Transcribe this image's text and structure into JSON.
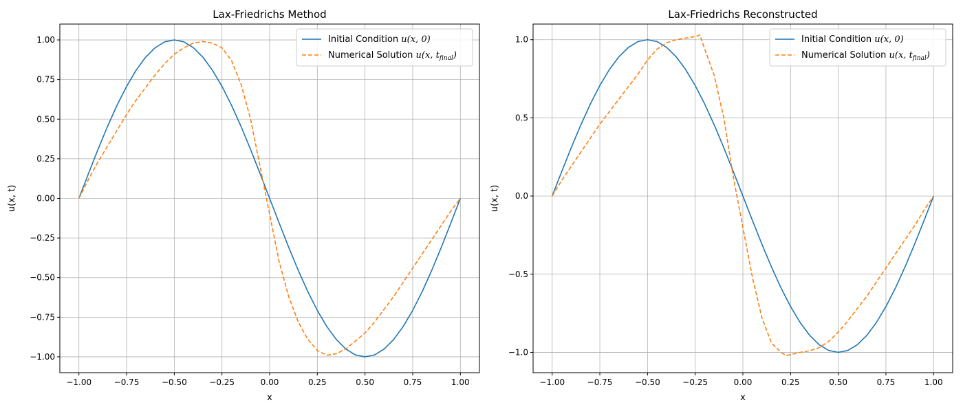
{
  "figure": {
    "panels": [
      {
        "title": "Lax-Friedrichs Method"
      },
      {
        "title": "Lax-Friedrichs Reconstructed"
      }
    ]
  },
  "chart_data": [
    {
      "type": "line",
      "title": "Lax-Friedrichs Method",
      "xlabel": "x",
      "ylabel": "u(x, t)",
      "xlim": [
        -1.1,
        1.1
      ],
      "ylim": [
        -1.1,
        1.1
      ],
      "xticks": [
        -1.0,
        -0.75,
        -0.5,
        -0.25,
        0.0,
        0.25,
        0.5,
        0.75,
        1.0
      ],
      "xtick_labels": [
        "−1.00",
        "−0.75",
        "−0.50",
        "−0.25",
        "0.00",
        "0.25",
        "0.50",
        "0.75",
        "1.00"
      ],
      "yticks": [
        -1.0,
        -0.75,
        -0.5,
        -0.25,
        0.0,
        0.25,
        0.5,
        0.75,
        1.0
      ],
      "ytick_labels": [
        "−1.00",
        "−0.75",
        "−0.50",
        "−0.25",
        "0.00",
        "0.25",
        "0.50",
        "0.75",
        "1.00"
      ],
      "grid": true,
      "legend_position": "top-right",
      "series": [
        {
          "name": "Initial Condition u(x, 0)",
          "legend_prefix": "Initial Condition ",
          "legend_math": "u(x, 0)",
          "color": "#1f77b4",
          "style": "solid",
          "x": [
            -1.0,
            -0.95,
            -0.9,
            -0.85,
            -0.8,
            -0.75,
            -0.7,
            -0.65,
            -0.6,
            -0.55,
            -0.5,
            -0.45,
            -0.4,
            -0.35,
            -0.3,
            -0.25,
            -0.2,
            -0.15,
            -0.1,
            -0.05,
            0.0,
            0.05,
            0.1,
            0.15,
            0.2,
            0.25,
            0.3,
            0.35,
            0.4,
            0.45,
            0.5,
            0.55,
            0.6,
            0.65,
            0.7,
            0.75,
            0.8,
            0.85,
            0.9,
            0.95,
            1.0
          ],
          "y": [
            0.0,
            0.156,
            0.309,
            0.454,
            0.588,
            0.707,
            0.809,
            0.891,
            0.951,
            0.988,
            1.0,
            0.988,
            0.951,
            0.891,
            0.809,
            0.707,
            0.588,
            0.454,
            0.309,
            0.156,
            0.0,
            -0.156,
            -0.309,
            -0.454,
            -0.588,
            -0.707,
            -0.809,
            -0.891,
            -0.951,
            -0.988,
            -1.0,
            -0.988,
            -0.951,
            -0.891,
            -0.809,
            -0.707,
            -0.588,
            -0.454,
            -0.309,
            -0.156,
            0.0
          ]
        },
        {
          "name": "Numerical Solution u(x, t_final)",
          "legend_prefix": "Numerical Solution ",
          "legend_math": "u(x, t",
          "legend_sub": "final",
          "legend_close": ")",
          "color": "#ff7f0e",
          "style": "dashed",
          "x": [
            -1.0,
            -0.95,
            -0.9,
            -0.85,
            -0.8,
            -0.75,
            -0.7,
            -0.65,
            -0.6,
            -0.55,
            -0.5,
            -0.45,
            -0.4,
            -0.35,
            -0.3,
            -0.25,
            -0.2,
            -0.15,
            -0.1,
            -0.05,
            0.0,
            0.05,
            0.1,
            0.15,
            0.2,
            0.25,
            0.3,
            0.35,
            0.4,
            0.45,
            0.5,
            0.55,
            0.6,
            0.65,
            0.7,
            0.75,
            0.8,
            0.85,
            0.9,
            0.95,
            1.0
          ],
          "y": [
            0.0,
            0.12,
            0.23,
            0.33,
            0.43,
            0.53,
            0.62,
            0.7,
            0.78,
            0.85,
            0.91,
            0.95,
            0.98,
            0.99,
            0.98,
            0.95,
            0.87,
            0.72,
            0.5,
            0.2,
            -0.1,
            -0.4,
            -0.62,
            -0.78,
            -0.89,
            -0.96,
            -0.99,
            -0.98,
            -0.95,
            -0.9,
            -0.85,
            -0.78,
            -0.7,
            -0.62,
            -0.53,
            -0.44,
            -0.35,
            -0.26,
            -0.17,
            -0.08,
            0.0
          ]
        }
      ]
    },
    {
      "type": "line",
      "title": "Lax-Friedrichs Reconstructed",
      "xlabel": "x",
      "ylabel": "u(x, t)",
      "xlim": [
        -1.1,
        1.1
      ],
      "ylim": [
        -1.13,
        1.1
      ],
      "xticks": [
        -1.0,
        -0.75,
        -0.5,
        -0.25,
        0.0,
        0.25,
        0.5,
        0.75,
        1.0
      ],
      "xtick_labels": [
        "−1.00",
        "−0.75",
        "−0.50",
        "−0.25",
        "0.00",
        "0.25",
        "0.50",
        "0.75",
        "1.00"
      ],
      "yticks": [
        -1.0,
        -0.5,
        0.0,
        0.5,
        1.0
      ],
      "ytick_labels": [
        "−1.0",
        "−0.5",
        "0.0",
        "0.5",
        "1.0"
      ],
      "grid": true,
      "legend_position": "top-right",
      "series": [
        {
          "name": "Initial Condition u(x, 0)",
          "legend_prefix": "Initial Condition ",
          "legend_math": "u(x, 0)",
          "color": "#1f77b4",
          "style": "solid",
          "x": [
            -1.0,
            -0.95,
            -0.9,
            -0.85,
            -0.8,
            -0.75,
            -0.7,
            -0.65,
            -0.6,
            -0.55,
            -0.5,
            -0.45,
            -0.4,
            -0.35,
            -0.3,
            -0.25,
            -0.2,
            -0.15,
            -0.1,
            -0.05,
            0.0,
            0.05,
            0.1,
            0.15,
            0.2,
            0.25,
            0.3,
            0.35,
            0.4,
            0.45,
            0.5,
            0.55,
            0.6,
            0.65,
            0.7,
            0.75,
            0.8,
            0.85,
            0.9,
            0.95,
            1.0
          ],
          "y": [
            0.0,
            0.156,
            0.309,
            0.454,
            0.588,
            0.707,
            0.809,
            0.891,
            0.951,
            0.988,
            1.0,
            0.988,
            0.951,
            0.891,
            0.809,
            0.707,
            0.588,
            0.454,
            0.309,
            0.156,
            0.0,
            -0.156,
            -0.309,
            -0.454,
            -0.588,
            -0.707,
            -0.809,
            -0.891,
            -0.951,
            -0.988,
            -1.0,
            -0.988,
            -0.951,
            -0.891,
            -0.809,
            -0.707,
            -0.588,
            -0.454,
            -0.309,
            -0.156,
            0.0
          ]
        },
        {
          "name": "Numerical Solution u(x, t_final)",
          "legend_prefix": "Numerical Solution ",
          "legend_math": "u(x, t",
          "legend_sub": "final",
          "legend_close": ")",
          "color": "#ff7f0e",
          "style": "dashed",
          "x": [
            -1.0,
            -0.95,
            -0.9,
            -0.85,
            -0.8,
            -0.75,
            -0.7,
            -0.65,
            -0.6,
            -0.55,
            -0.5,
            -0.45,
            -0.4,
            -0.35,
            -0.3,
            -0.25,
            -0.225,
            -0.2,
            -0.15,
            -0.1,
            -0.05,
            0.0,
            0.05,
            0.1,
            0.15,
            0.2,
            0.225,
            0.25,
            0.3,
            0.35,
            0.4,
            0.45,
            0.5,
            0.55,
            0.6,
            0.65,
            0.7,
            0.75,
            0.8,
            0.85,
            0.9,
            0.95,
            1.0
          ],
          "y": [
            0.0,
            0.1,
            0.19,
            0.28,
            0.37,
            0.46,
            0.54,
            0.62,
            0.7,
            0.78,
            0.87,
            0.94,
            0.98,
            1.0,
            1.01,
            1.02,
            1.03,
            0.94,
            0.77,
            0.5,
            0.12,
            -0.2,
            -0.52,
            -0.78,
            -0.94,
            -1.0,
            -1.02,
            -1.015,
            -1.0,
            -0.99,
            -0.97,
            -0.93,
            -0.87,
            -0.8,
            -0.72,
            -0.64,
            -0.55,
            -0.46,
            -0.37,
            -0.28,
            -0.19,
            -0.09,
            0.0
          ]
        }
      ]
    }
  ]
}
